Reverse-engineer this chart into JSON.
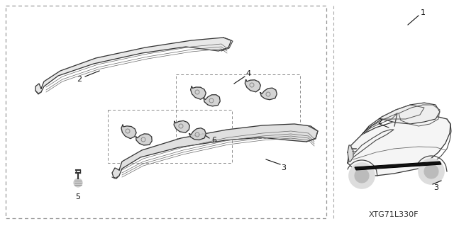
{
  "background_color": "#ffffff",
  "diagram_code": "XTG71L330F",
  "border_color": "#888888",
  "line_color": "#333333",
  "label_color": "#111111",
  "font_size_labels": 8,
  "font_size_code": 7,
  "dash_pattern": [
    4,
    3
  ]
}
